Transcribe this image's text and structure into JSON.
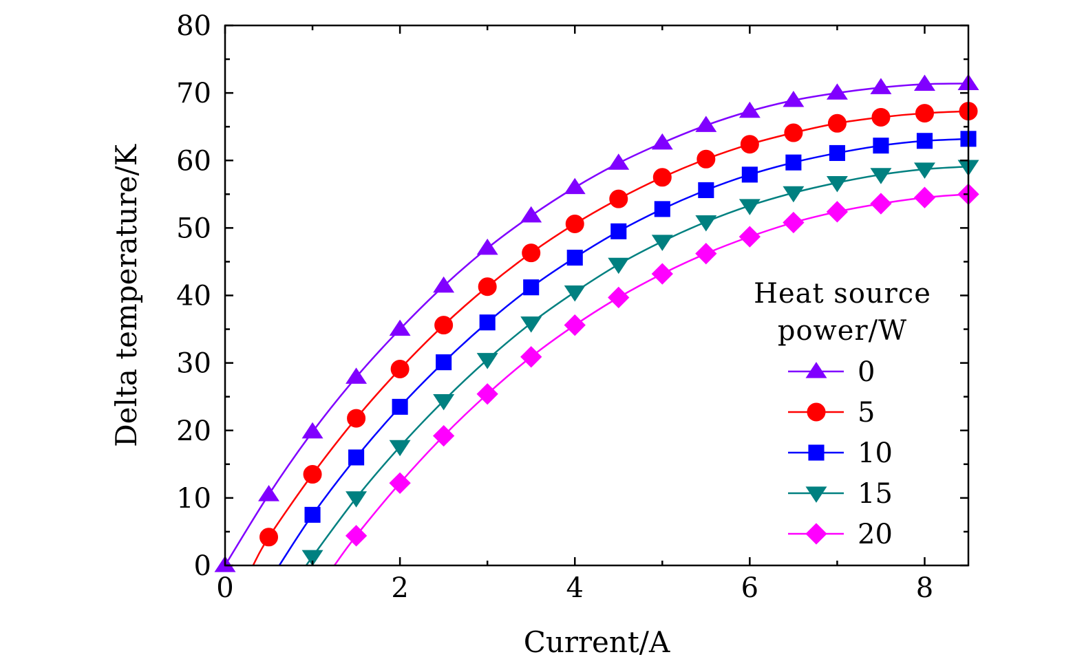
{
  "chart_data": {
    "type": "line",
    "title": "",
    "xlabel": "Current/A",
    "ylabel": "Delta temperature/K",
    "xlim": [
      0,
      8.5
    ],
    "ylim": [
      0,
      80
    ],
    "xticks": [
      0,
      2,
      4,
      6,
      8
    ],
    "xtick_labels": [
      "0",
      "2",
      "4",
      "6",
      "8"
    ],
    "yticks": [
      0,
      10,
      20,
      30,
      40,
      50,
      60,
      70,
      80
    ],
    "ytick_labels": [
      "0",
      "10",
      "20",
      "30",
      "40",
      "50",
      "60",
      "70",
      "80"
    ],
    "grid": false,
    "legend": {
      "title_line1": "Heat source",
      "title_line2": "power/W",
      "position": "right-center"
    },
    "series": [
      {
        "name": "0",
        "color": "#8000FF",
        "marker": "triangle-up",
        "x": [
          0,
          0.5,
          1,
          1.5,
          2,
          2.5,
          3,
          3.5,
          4,
          4.5,
          5,
          5.5,
          6,
          6.5,
          7,
          7.5,
          8,
          8.5
        ],
        "y": [
          0,
          10.5,
          19.8,
          27.9,
          35.0,
          41.4,
          47.0,
          51.8,
          56.0,
          59.6,
          62.6,
          65.2,
          67.3,
          68.9,
          70.0,
          70.8,
          71.3,
          71.4
        ]
      },
      {
        "name": "5",
        "color": "#FF0000",
        "marker": "circle",
        "x": [
          0.5,
          1,
          1.5,
          2,
          2.5,
          3,
          3.5,
          4,
          4.5,
          5,
          5.5,
          6,
          6.5,
          7,
          7.5,
          8,
          8.5
        ],
        "y": [
          4.2,
          13.5,
          21.8,
          29.1,
          35.6,
          41.3,
          46.3,
          50.6,
          54.3,
          57.5,
          60.2,
          62.4,
          64.1,
          65.5,
          66.4,
          67.0,
          67.3
        ]
      },
      {
        "name": "10",
        "color": "#0000FF",
        "marker": "square",
        "x": [
          1,
          1.5,
          2,
          2.5,
          3,
          3.5,
          4,
          4.5,
          5,
          5.5,
          6,
          6.5,
          7,
          7.5,
          8,
          8.5
        ],
        "y": [
          7.5,
          16.0,
          23.5,
          30.1,
          36.0,
          41.2,
          45.6,
          49.5,
          52.8,
          55.6,
          57.9,
          59.7,
          61.1,
          62.2,
          62.9,
          63.2
        ]
      },
      {
        "name": "15",
        "color": "#008080",
        "marker": "triangle-down",
        "x": [
          1,
          1.5,
          2,
          2.5,
          3,
          3.5,
          4,
          4.5,
          5,
          5.5,
          6,
          6.5,
          7,
          7.5,
          8,
          8.5
        ],
        "y": [
          1.3,
          10.0,
          17.6,
          24.4,
          30.5,
          35.9,
          40.5,
          44.6,
          48.0,
          50.9,
          53.3,
          55.2,
          56.7,
          57.9,
          58.7,
          59.1
        ]
      },
      {
        "name": "20",
        "color": "#FF00FF",
        "marker": "diamond",
        "x": [
          1.5,
          2,
          2.5,
          3,
          3.5,
          4,
          4.5,
          5,
          5.5,
          6,
          6.5,
          7,
          7.5,
          8,
          8.5
        ],
        "y": [
          4.4,
          12.2,
          19.2,
          25.4,
          30.9,
          35.6,
          39.7,
          43.2,
          46.2,
          48.7,
          50.8,
          52.4,
          53.6,
          54.5,
          55.0
        ]
      }
    ],
    "curve_extensions": [
      {
        "series": "5",
        "x0": 0.32,
        "y0": 0
      },
      {
        "series": "10",
        "x0": 0.62,
        "y0": 0
      },
      {
        "series": "15",
        "x0": 0.93,
        "y0": 0
      },
      {
        "series": "20",
        "x0": 1.25,
        "y0": 0
      }
    ]
  }
}
